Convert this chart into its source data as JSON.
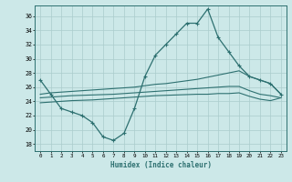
{
  "x": [
    0,
    1,
    2,
    3,
    4,
    5,
    6,
    7,
    8,
    9,
    10,
    11,
    12,
    13,
    14,
    15,
    16,
    17,
    18,
    19,
    20,
    21,
    22,
    23
  ],
  "main_y": [
    27,
    25,
    23,
    22.5,
    22,
    21,
    19,
    18.5,
    19.5,
    23,
    27.5,
    30.5,
    32,
    33.5,
    35,
    35,
    37,
    33,
    31,
    29,
    27.5,
    27,
    26.5,
    25
  ],
  "upper_y": [
    25.0,
    25.2,
    25.3,
    25.4,
    25.5,
    25.6,
    25.7,
    25.8,
    25.9,
    26.0,
    26.2,
    26.4,
    26.5,
    26.7,
    26.9,
    27.1,
    27.4,
    27.7,
    28.0,
    28.3,
    27.5,
    27.0,
    26.5,
    25.0
  ],
  "mid_y": [
    24.5,
    24.6,
    24.7,
    24.8,
    24.85,
    24.9,
    24.95,
    25.0,
    25.1,
    25.2,
    25.3,
    25.4,
    25.5,
    25.6,
    25.7,
    25.8,
    25.9,
    26.0,
    26.1,
    26.1,
    25.5,
    25.0,
    24.8,
    24.5
  ],
  "lower_y": [
    23.8,
    23.9,
    24.0,
    24.1,
    24.15,
    24.2,
    24.3,
    24.4,
    24.5,
    24.6,
    24.7,
    24.8,
    24.85,
    24.9,
    24.95,
    25.0,
    25.0,
    25.1,
    25.1,
    25.2,
    24.7,
    24.3,
    24.1,
    24.5
  ],
  "bg_color": "#cce8e8",
  "line_color": "#2d7070",
  "grid_color": "#aacccc",
  "xlabel": "Humidex (Indice chaleur)",
  "xlim": [
    -0.5,
    23.5
  ],
  "ylim": [
    17,
    37.5
  ],
  "yticks": [
    18,
    20,
    22,
    24,
    26,
    28,
    30,
    32,
    34,
    36
  ],
  "xticks": [
    0,
    1,
    2,
    3,
    4,
    5,
    6,
    7,
    8,
    9,
    10,
    11,
    12,
    13,
    14,
    15,
    16,
    17,
    18,
    19,
    20,
    21,
    22,
    23
  ]
}
